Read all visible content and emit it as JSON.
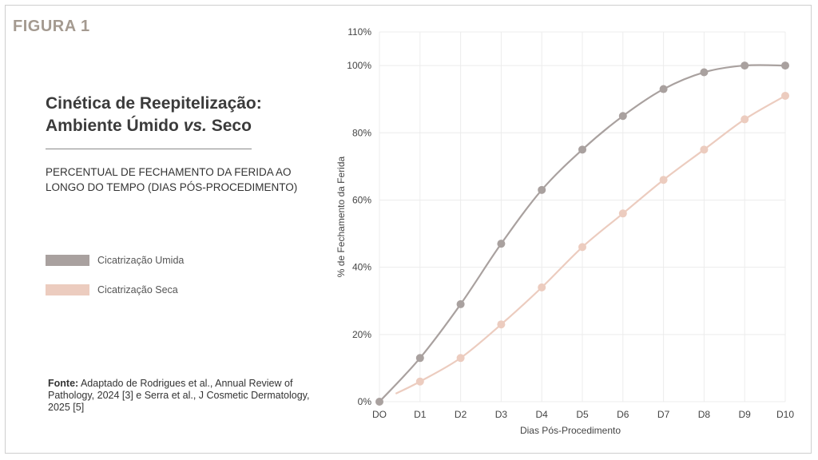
{
  "figure_label": "FIGURA 1",
  "title_line1": "Cinética de Reepitelização:",
  "title_line2_pre": "Ambiente Úmido ",
  "title_line2_em": "vs.",
  "title_line2_post": " Seco",
  "subtitle": "PERCENTUAL DE FECHAMENTO DA FERIDA AO LONGO DO TEMPO (DIAS PÓS-PROCEDIMENTO)",
  "legend": [
    {
      "label": "Cicatrização Umida",
      "color": "#a9a19f"
    },
    {
      "label": "Cicatrização Seca",
      "color": "#ecccbf"
    }
  ],
  "source_label": "Fonte:",
  "source_text": " Adaptado de Rodrigues et al., Annual Review of Pathology, 2024 [3] e Serra et al., J Cosmetic Dermatology, 2025 [5]",
  "chart_data": {
    "type": "line",
    "categories": [
      "DO",
      "D1",
      "D2",
      "D3",
      "D4",
      "D5",
      "D6",
      "D7",
      "D8",
      "D9",
      "D10"
    ],
    "xlabel": "Dias Pós-Procedimento",
    "ylabel": "% de Fechamento da Ferida",
    "ylim": [
      0,
      110
    ],
    "yticks": [
      "0%",
      "20%",
      "40%",
      "60%",
      "80%",
      "100%",
      "110%"
    ],
    "ytick_values": [
      0,
      20,
      40,
      60,
      80,
      100,
      110
    ],
    "grid": true,
    "series": [
      {
        "name": "Cicatrização Umida",
        "color": "#a9a19f",
        "values": [
          0,
          13,
          29,
          47,
          63,
          75,
          85,
          93,
          98,
          100,
          100
        ]
      },
      {
        "name": "Cicatrização Seca",
        "color": "#ecccbf",
        "line_start": 0.4,
        "values": [
          null,
          6,
          13,
          23,
          34,
          46,
          56,
          66,
          75,
          84,
          91
        ]
      }
    ]
  }
}
